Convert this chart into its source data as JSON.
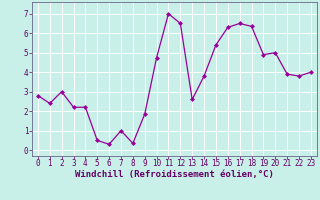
{
  "x": [
    0,
    1,
    2,
    3,
    4,
    5,
    6,
    7,
    8,
    9,
    10,
    11,
    12,
    13,
    14,
    15,
    16,
    17,
    18,
    19,
    20,
    21,
    22,
    23
  ],
  "y": [
    2.8,
    2.4,
    3.0,
    2.2,
    2.2,
    0.5,
    0.3,
    1.0,
    0.35,
    1.85,
    4.75,
    7.0,
    6.5,
    2.6,
    3.8,
    5.4,
    6.3,
    6.5,
    6.35,
    4.9,
    5.0,
    3.9,
    3.8,
    4.0
  ],
  "line_color": "#990099",
  "marker": "D",
  "marker_size": 2.0,
  "linewidth": 0.9,
  "xlabel": "Windchill (Refroidissement éolien,°C)",
  "xlabel_fontsize": 6.5,
  "xlim": [
    -0.5,
    23.5
  ],
  "ylim": [
    -0.3,
    7.6
  ],
  "yticks": [
    0,
    1,
    2,
    3,
    4,
    5,
    6,
    7
  ],
  "xticks": [
    0,
    1,
    2,
    3,
    4,
    5,
    6,
    7,
    8,
    9,
    10,
    11,
    12,
    13,
    14,
    15,
    16,
    17,
    18,
    19,
    20,
    21,
    22,
    23
  ],
  "tick_fontsize": 5.5,
  "bg_color": "#c8f0e8",
  "grid_color": "#ffffff",
  "grid_linewidth": 0.7,
  "fig_bg": "#c8f0e8",
  "spine_color": "#666688"
}
